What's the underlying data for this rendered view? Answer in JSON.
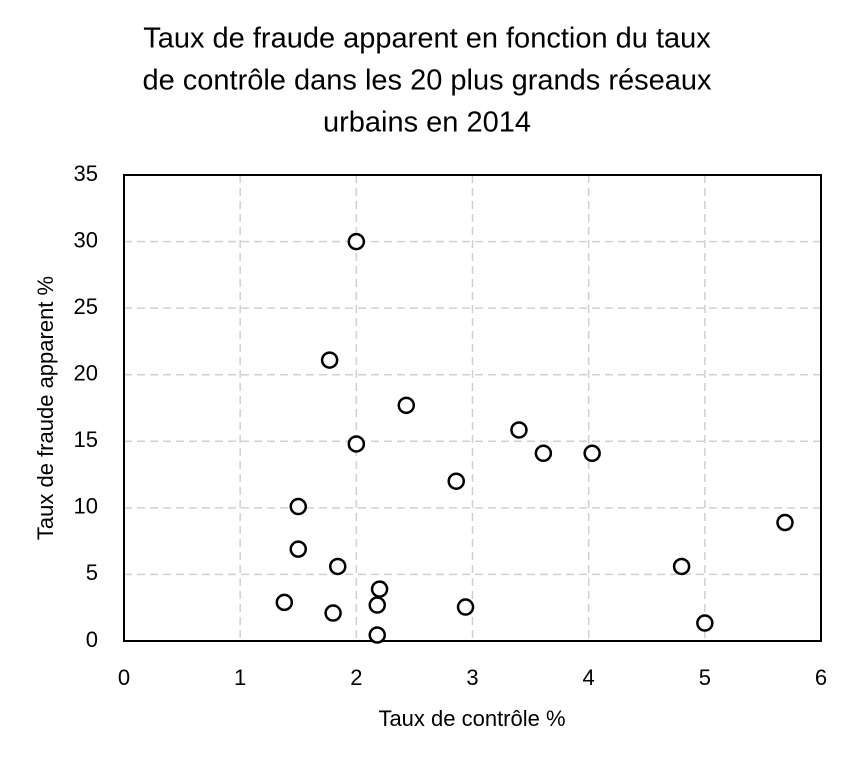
{
  "chart_data": {
    "type": "scatter",
    "title": [
      "Taux de fraude apparent en fonction du taux",
      "de contrôle dans les 20 plus grands réseaux",
      "urbains en 2014"
    ],
    "x_label": "Taux de contrôle %",
    "y_label": "Taux de fraude apparent %",
    "x": [
      2.0,
      1.77,
      2.43,
      2.0,
      3.4,
      3.61,
      4.03,
      2.86,
      1.5,
      1.5,
      1.84,
      2.2,
      2.18,
      1.38,
      1.8,
      2.94,
      2.18,
      5.69,
      4.8,
      5.0
    ],
    "values": [
      30,
      21.1,
      17.7,
      14.8,
      15.85,
      14.1,
      14.1,
      12.0,
      10.1,
      6.9,
      5.6,
      3.9,
      2.7,
      2.9,
      2.1,
      2.55,
      0.45,
      8.9,
      5.6,
      1.35
    ],
    "color": "#000000",
    "xlim": [
      0,
      6
    ],
    "xticks": [
      0,
      1,
      2,
      3,
      4,
      5,
      6
    ],
    "ylim": [
      0,
      35
    ],
    "yticks": [
      0,
      5,
      10,
      15,
      20,
      25,
      30,
      35
    ],
    "grid": true
  }
}
